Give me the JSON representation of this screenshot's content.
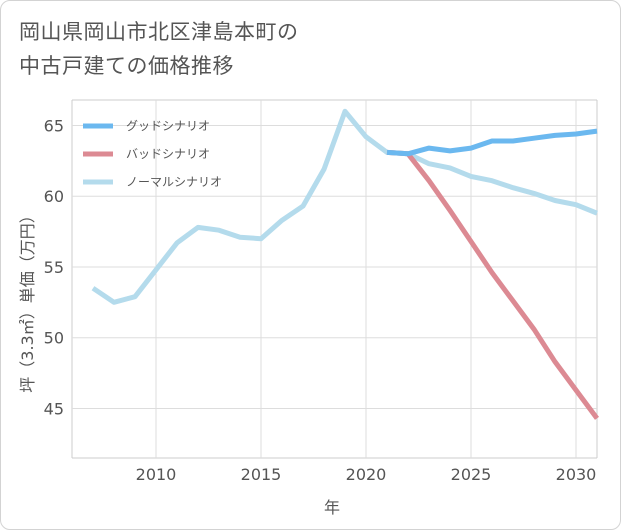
{
  "title": {
    "line1": "岡山県岡山市北区津島本町の",
    "line2": "中古戸建ての価格推移"
  },
  "chart_data": {
    "type": "line",
    "title": "岡山県岡山市北区津島本町の中古戸建ての価格推移",
    "xlabel": "年",
    "ylabel": "坪（3.3㎡）単価（万円）",
    "xlim": [
      2006,
      2031
    ],
    "ylim": [
      41.5,
      66.8
    ],
    "xticks": [
      2010,
      2015,
      2020,
      2025,
      2030
    ],
    "yticks": [
      45,
      50,
      55,
      60,
      65
    ],
    "grid": true,
    "legend_position": "top-left",
    "series": [
      {
        "name": "グッドシナリオ",
        "color": "#6bb8ef",
        "x": [
          2021,
          2022,
          2023,
          2024,
          2025,
          2026,
          2027,
          2028,
          2029,
          2030,
          2031
        ],
        "y": [
          63.1,
          63.0,
          63.4,
          63.2,
          63.4,
          63.9,
          63.9,
          64.1,
          64.3,
          64.4,
          64.6
        ]
      },
      {
        "name": "バッドシナリオ",
        "color": "#dc8a93",
        "x": [
          2021,
          2022,
          2023,
          2024,
          2025,
          2026,
          2027,
          2028,
          2029,
          2030,
          2031
        ],
        "y": [
          63.1,
          63.0,
          61.1,
          59.0,
          56.8,
          54.6,
          52.6,
          50.6,
          48.3,
          46.3,
          44.3
        ]
      },
      {
        "name": "ノーマルシナリオ",
        "color": "#b4dbec",
        "x": [
          2007,
          2008,
          2009,
          2010,
          2011,
          2012,
          2013,
          2014,
          2015,
          2016,
          2017,
          2018,
          2019,
          2020,
          2021,
          2022,
          2023,
          2024,
          2025,
          2026,
          2027,
          2028,
          2029,
          2030,
          2031
        ],
        "y": [
          53.5,
          52.5,
          52.9,
          54.8,
          56.7,
          57.8,
          57.6,
          57.1,
          57.0,
          58.3,
          59.3,
          61.9,
          66.0,
          64.2,
          63.1,
          63.0,
          62.3,
          62.0,
          61.4,
          61.1,
          60.6,
          60.2,
          59.7,
          59.4,
          58.8
        ]
      }
    ]
  }
}
